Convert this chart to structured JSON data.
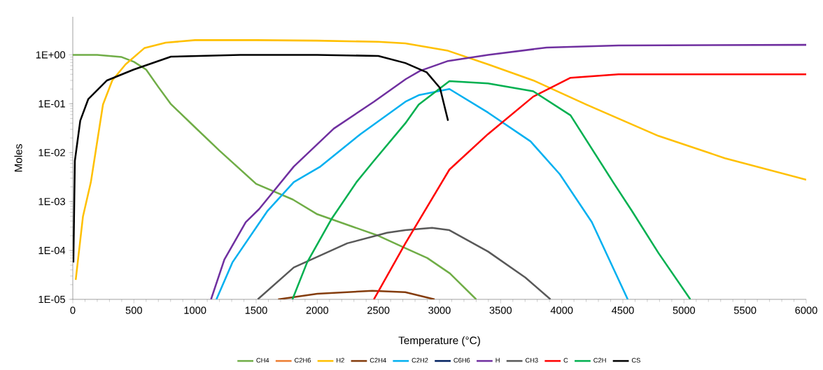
{
  "chart_data": {
    "type": "line",
    "xlabel": "Temperature (°C)",
    "ylabel": "Moles",
    "log": "y",
    "legend": "bottom",
    "grid": false,
    "xlim": [
      0,
      6000
    ],
    "xticks": [
      0,
      500,
      1000,
      1500,
      2000,
      2500,
      3000,
      3500,
      4000,
      4500,
      5000,
      5500,
      6000
    ],
    "ylim": [
      1e-05,
      6
    ],
    "yticks": [
      {
        "value": 1e-05,
        "label": "1E-05"
      },
      {
        "value": 0.0001,
        "label": "1E-04"
      },
      {
        "value": 0.001,
        "label": "1E-03"
      },
      {
        "value": 0.01,
        "label": "1E-02"
      },
      {
        "value": 0.1,
        "label": "1E-01"
      },
      {
        "value": 1,
        "label": "1E+00"
      }
    ],
    "series": [
      {
        "name": "CH4",
        "color": "#70ad47",
        "x": [
          0,
          200,
          400,
          500,
          600,
          700,
          800,
          1000,
          1200,
          1500,
          1800,
          2000,
          2300,
          2500,
          2725,
          2900,
          3085,
          3300
        ],
        "values": [
          1.0,
          1.0,
          0.9,
          0.72,
          0.5,
          0.22,
          0.1,
          0.033,
          0.011,
          0.0023,
          0.0011,
          0.00055,
          0.0003,
          0.0002,
          0.00011,
          7e-05,
          3.4e-05,
          1e-05
        ]
      },
      {
        "name": "C2H6",
        "color": "#ed7d31"
      },
      {
        "name": "H2",
        "color": "#ffc000",
        "x": [
          24,
          83,
          148,
          247,
          323,
          432,
          585,
          760,
          1000,
          1500,
          2000,
          2500,
          2721,
          3070,
          3397,
          3767,
          4203,
          4791,
          5335,
          6000
        ],
        "values": [
          2.5e-05,
          0.00049,
          0.0025,
          0.096,
          0.3,
          0.64,
          1.37,
          1.77,
          2.0,
          2.0,
          1.95,
          1.85,
          1.72,
          1.21,
          0.64,
          0.3,
          0.096,
          0.022,
          0.0077,
          0.0028
        ]
      },
      {
        "name": "C2H4",
        "color": "#843c0c",
        "x": [
          1680,
          2000,
          2450,
          2720,
          2960
        ],
        "values": [
          1e-05,
          1.3e-05,
          1.5e-05,
          1.4e-05,
          1e-05
        ]
      },
      {
        "name": "C2H2",
        "color": "#00b0f0",
        "x": [
          1175,
          1306,
          1590,
          1808,
          2026,
          2354,
          2721,
          2830,
          3081,
          3397,
          3745,
          3985,
          4246,
          4540
        ],
        "values": [
          1e-05,
          5.7e-05,
          0.00063,
          0.0025,
          0.0052,
          0.024,
          0.11,
          0.15,
          0.2,
          0.066,
          0.017,
          0.0036,
          0.00038,
          1e-05
        ]
      },
      {
        "name": "C6H6",
        "color": "#002060"
      },
      {
        "name": "H",
        "color": "#7030a0",
        "x": [
          1131,
          1240,
          1415,
          1524,
          1808,
          2135,
          2463,
          2725,
          2840,
          3070,
          3397,
          3876,
          4464,
          6000
        ],
        "values": [
          1e-05,
          6.5e-05,
          0.00038,
          0.0007,
          0.0052,
          0.031,
          0.11,
          0.32,
          0.47,
          0.75,
          1.0,
          1.41,
          1.56,
          1.6
        ]
      },
      {
        "name": "CH3",
        "color": "#595959",
        "x": [
          1513,
          1808,
          2245,
          2572,
          2721,
          2939,
          3081,
          3397,
          3702,
          3908
        ],
        "values": [
          1e-05,
          4.5e-05,
          0.00014,
          0.00023,
          0.00026,
          0.00029,
          0.00026,
          9.5e-05,
          2.8e-05,
          1e-05
        ]
      },
      {
        "name": "C",
        "color": "#ff0000",
        "x": [
          2463,
          2721,
          3081,
          3397,
          3767,
          4072,
          4464,
          6000
        ],
        "values": [
          1e-05,
          0.00014,
          0.0045,
          0.024,
          0.14,
          0.34,
          0.4,
          0.4
        ]
      },
      {
        "name": "C2H",
        "color": "#00b050",
        "x": [
          1797,
          1917,
          2114,
          2321,
          2463,
          2721,
          2830,
          3081,
          3397,
          3767,
          4072,
          4420,
          4573,
          4791,
          5052
        ],
        "values": [
          1e-05,
          5.7e-05,
          0.00043,
          0.0025,
          0.0068,
          0.04,
          0.096,
          0.29,
          0.26,
          0.18,
          0.058,
          0.0025,
          0.00065,
          8.9e-05,
          1e-05
        ]
      },
      {
        "name": "CS",
        "color": "#000000",
        "x": [
          5,
          17,
          61,
          127,
          280,
          498,
          803,
          1371,
          2000,
          2500,
          2721,
          2895,
          3004,
          3070
        ],
        "values": [
          5.7e-05,
          0.0068,
          0.045,
          0.125,
          0.3,
          0.5,
          0.92,
          1.0,
          1.0,
          0.95,
          0.68,
          0.44,
          0.21,
          0.045
        ]
      }
    ]
  }
}
